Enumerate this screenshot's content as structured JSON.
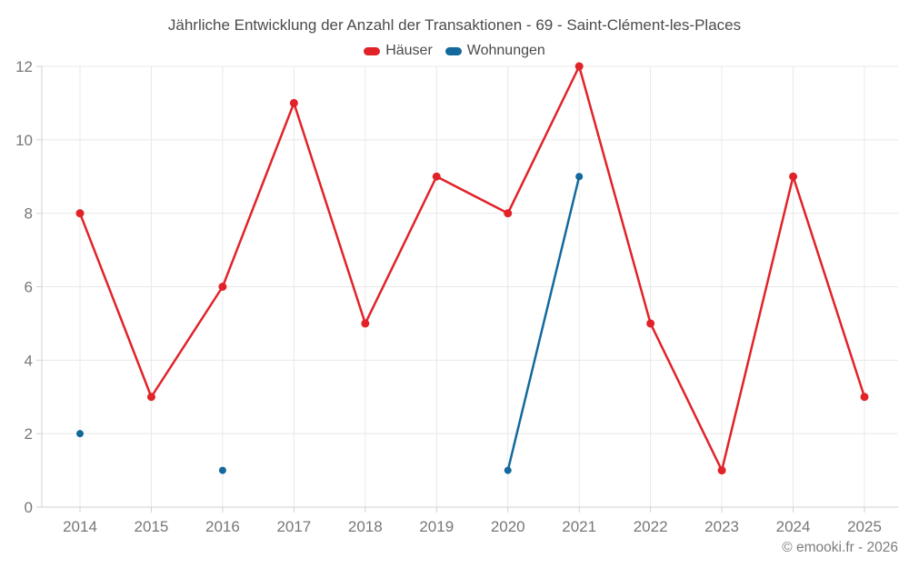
{
  "title": "Jährliche Entwicklung der Anzahl der Transaktionen - 69 - Saint-Clément-les-Places",
  "footer": "© emooki.fr - 2026",
  "colors": {
    "hauser_red": "#e12329",
    "wohnungen_blue": "#13699e",
    "grid": "#e8e8e8",
    "axis": "#d2d2d2",
    "tick_label": "#777777",
    "title_text": "#4b4b4b"
  },
  "chart_data": {
    "type": "line",
    "title": "Jährliche Entwicklung der Anzahl der Transaktionen - 69 - Saint-Clément-les-Places",
    "xlabel": "",
    "ylabel": "",
    "x": [
      2014,
      2015,
      2016,
      2017,
      2018,
      2019,
      2020,
      2021,
      2022,
      2023,
      2024,
      2025
    ],
    "series": [
      {
        "name": "Häuser",
        "color": "#e12329",
        "marker_radius": 4.5,
        "values": [
          8,
          3,
          6,
          11,
          5,
          9,
          8,
          12,
          5,
          1,
          9,
          3
        ]
      },
      {
        "name": "Wohnungen",
        "color": "#13699e",
        "marker_radius": 4,
        "values": [
          2,
          null,
          1,
          null,
          null,
          null,
          1,
          9,
          null,
          null,
          null,
          null
        ]
      }
    ],
    "ylim": [
      0,
      12
    ],
    "yticks": [
      0,
      2,
      4,
      6,
      8,
      10,
      12
    ],
    "grid": true,
    "legend_position": "top"
  }
}
